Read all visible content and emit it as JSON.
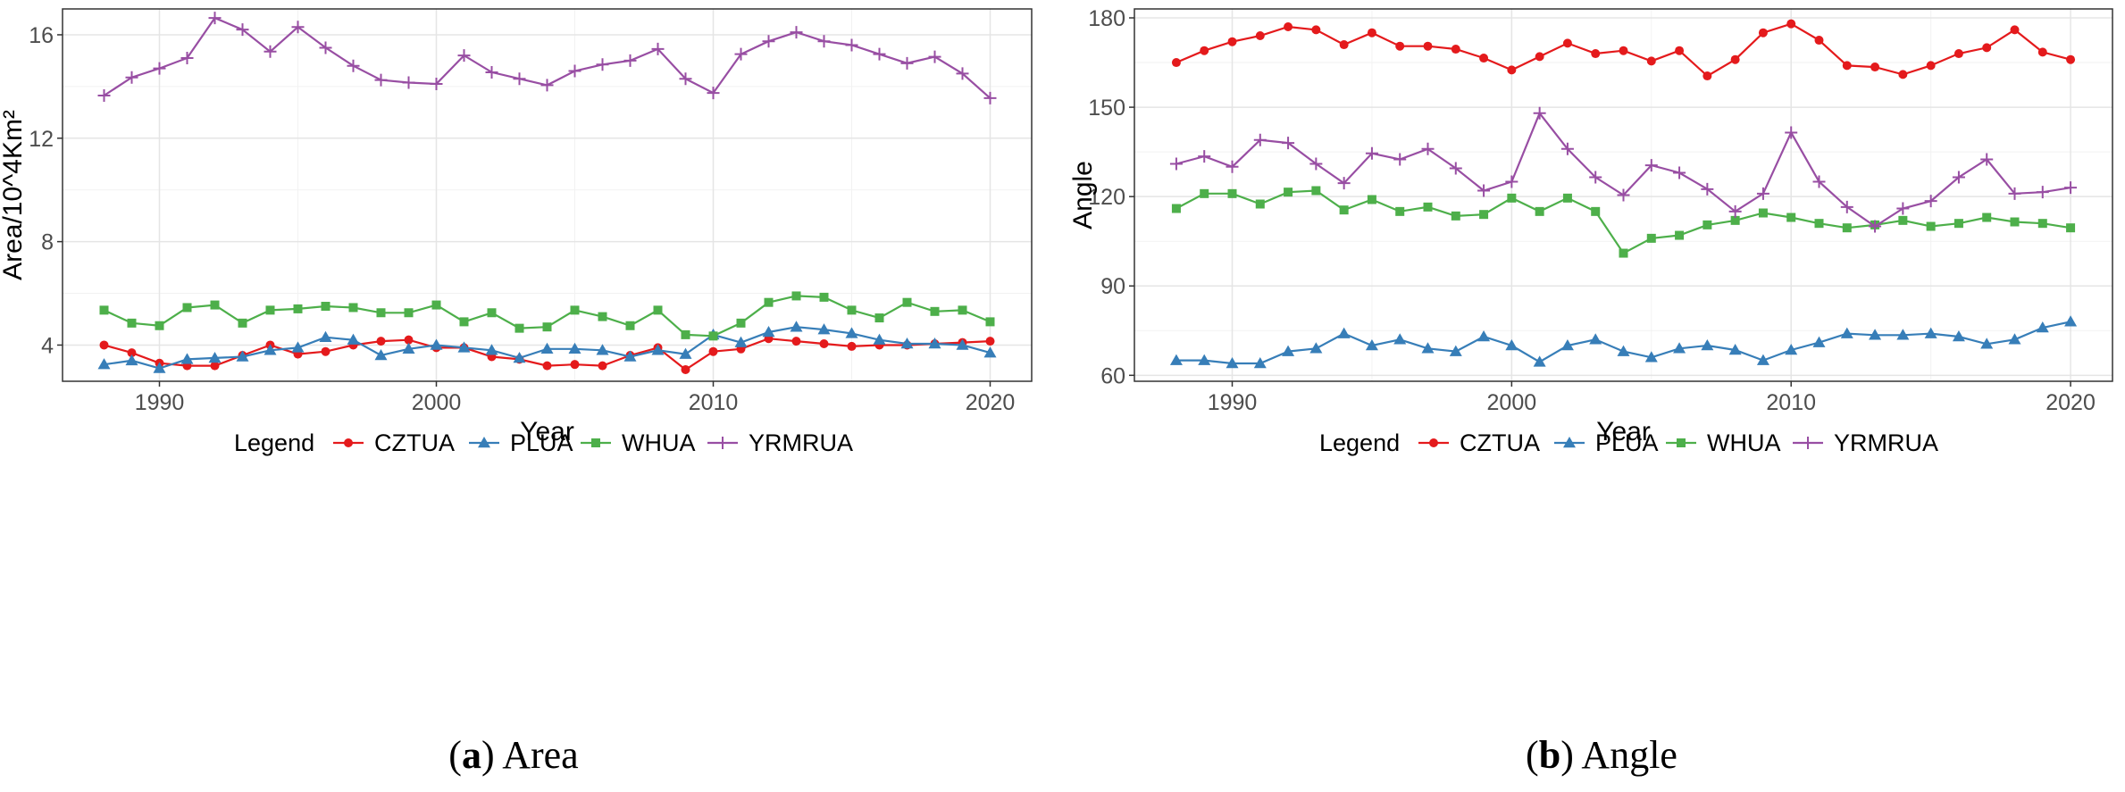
{
  "chart_data": [
    {
      "type": "line",
      "caption_label": "a",
      "caption_text": "Area",
      "xlabel": "Year",
      "ylabel": "Area/10^4Km²",
      "legend_title": "Legend",
      "legend_position": "bottom",
      "grid": true,
      "xlim": [
        1986.5,
        2021.5
      ],
      "ylim": [
        2.6,
        17.0
      ],
      "xticks": [
        1990,
        2000,
        2010,
        2020
      ],
      "yticks": [
        4,
        8,
        12,
        16
      ],
      "x": [
        1988,
        1989,
        1990,
        1991,
        1992,
        1993,
        1994,
        1995,
        1996,
        1997,
        1998,
        1999,
        2000,
        2001,
        2002,
        2003,
        2004,
        2005,
        2006,
        2007,
        2008,
        2009,
        2010,
        2011,
        2012,
        2013,
        2014,
        2015,
        2016,
        2017,
        2018,
        2019,
        2020
      ],
      "series": [
        {
          "name": "CZTUA",
          "color": "#e41a1c",
          "marker": "circle",
          "values": [
            4.0,
            3.7,
            3.3,
            3.2,
            3.2,
            3.6,
            4.0,
            3.65,
            3.75,
            4.0,
            4.15,
            4.2,
            3.9,
            3.9,
            3.55,
            3.45,
            3.2,
            3.25,
            3.2,
            3.6,
            3.9,
            3.05,
            3.75,
            3.85,
            4.25,
            4.15,
            4.05,
            3.95,
            4.0,
            4.0,
            4.05,
            4.1,
            4.15
          ]
        },
        {
          "name": "PLUA",
          "color": "#377eb8",
          "marker": "triangle",
          "values": [
            3.25,
            3.4,
            3.1,
            3.45,
            3.5,
            3.55,
            3.8,
            3.9,
            4.3,
            4.2,
            3.6,
            3.85,
            4.0,
            3.9,
            3.8,
            3.5,
            3.85,
            3.85,
            3.8,
            3.55,
            3.8,
            3.65,
            4.4,
            4.1,
            4.5,
            4.7,
            4.6,
            4.45,
            4.2,
            4.05,
            4.05,
            4.0,
            3.7
          ]
        },
        {
          "name": "WHUA",
          "color": "#4daf4a",
          "marker": "square",
          "values": [
            5.35,
            4.85,
            4.75,
            5.45,
            5.55,
            4.85,
            5.35,
            5.4,
            5.5,
            5.45,
            5.25,
            5.25,
            5.55,
            4.9,
            5.25,
            4.65,
            4.7,
            5.35,
            5.1,
            4.75,
            5.35,
            4.4,
            4.35,
            4.85,
            5.65,
            5.9,
            5.85,
            5.35,
            5.05,
            5.65,
            5.3,
            5.35,
            4.9
          ]
        },
        {
          "name": "YRMRUA",
          "color": "#984ea3",
          "marker": "plus",
          "values": [
            13.65,
            14.35,
            14.7,
            15.1,
            16.65,
            16.2,
            15.35,
            16.3,
            15.5,
            14.8,
            14.25,
            14.15,
            14.1,
            15.2,
            14.55,
            14.3,
            14.05,
            14.6,
            14.85,
            15.0,
            15.45,
            14.3,
            13.75,
            15.25,
            15.75,
            16.1,
            15.75,
            15.6,
            15.25,
            14.9,
            15.15,
            14.5,
            13.55
          ]
        }
      ]
    },
    {
      "type": "line",
      "caption_label": "b",
      "caption_text": "Angle",
      "xlabel": "Year",
      "ylabel": "Angle",
      "legend_title": "Legend",
      "legend_position": "bottom",
      "grid": true,
      "xlim": [
        1986.5,
        2021.5
      ],
      "ylim": [
        58.0,
        183.0
      ],
      "xticks": [
        1990,
        2000,
        2010,
        2020
      ],
      "yticks": [
        60,
        90,
        120,
        150,
        180
      ],
      "x": [
        1988,
        1989,
        1990,
        1991,
        1992,
        1993,
        1994,
        1995,
        1996,
        1997,
        1998,
        1999,
        2000,
        2001,
        2002,
        2003,
        2004,
        2005,
        2006,
        2007,
        2008,
        2009,
        2010,
        2011,
        2012,
        2013,
        2014,
        2015,
        2016,
        2017,
        2018,
        2019,
        2020
      ],
      "series": [
        {
          "name": "CZTUA",
          "color": "#e41a1c",
          "marker": "circle",
          "values": [
            165,
            169,
            172,
            174,
            177,
            176,
            171,
            175,
            170.5,
            170.5,
            169.5,
            166.5,
            162.5,
            167,
            171.5,
            168,
            169,
            165.5,
            169,
            160.5,
            166,
            175,
            178,
            172.5,
            164,
            163.5,
            161,
            164,
            168,
            170,
            176,
            168.5,
            166
          ]
        },
        {
          "name": "PLUA",
          "color": "#377eb8",
          "marker": "triangle",
          "values": [
            65,
            65,
            64,
            64,
            68,
            69,
            74,
            70,
            72,
            69,
            68,
            73,
            70,
            64.5,
            70,
            72,
            68,
            66,
            69,
            70,
            68.5,
            65,
            68.5,
            71,
            74,
            73.5,
            73.5,
            74,
            73,
            70.5,
            72,
            76,
            78
          ]
        },
        {
          "name": "WHUA",
          "color": "#4daf4a",
          "marker": "square",
          "values": [
            116,
            121,
            121,
            117.5,
            121.5,
            122,
            115.5,
            119,
            115,
            116.5,
            113.5,
            114,
            119.5,
            115,
            119.5,
            115,
            101,
            106,
            107,
            110.5,
            112,
            114.5,
            113,
            111,
            109.5,
            110.5,
            112,
            110,
            111,
            113,
            111.5,
            111,
            109.5
          ]
        },
        {
          "name": "YRMRUA",
          "color": "#984ea3",
          "marker": "plus",
          "values": [
            131,
            133.5,
            130,
            139,
            138,
            131,
            124.5,
            134.5,
            132.5,
            136,
            129.5,
            122,
            125,
            148,
            136,
            126.5,
            120.5,
            130.5,
            128,
            122.5,
            115,
            121,
            141.5,
            125,
            116.5,
            110,
            116,
            118.5,
            126.5,
            132.5,
            121,
            121.5,
            123
          ]
        }
      ]
    }
  ]
}
